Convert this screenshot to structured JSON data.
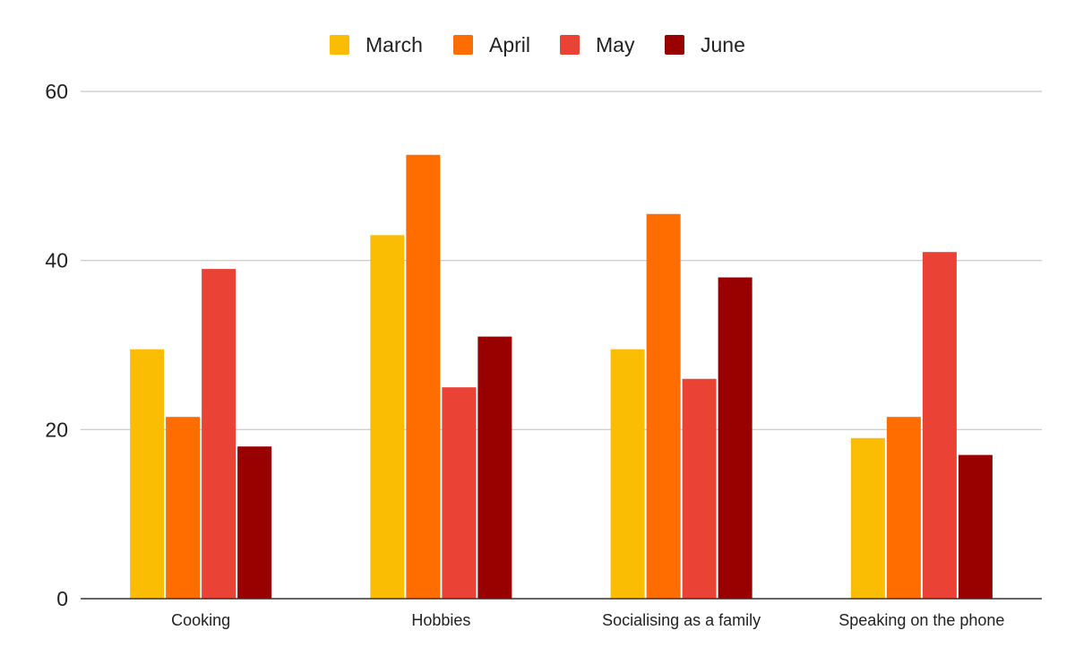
{
  "chart_data": {
    "type": "bar",
    "title": "",
    "xlabel": "",
    "ylabel": "",
    "categories": [
      "Cooking",
      "Hobbies",
      "Socialising as a family",
      "Speaking on the phone"
    ],
    "series": [
      {
        "name": "March",
        "color": "#fbbc04",
        "values": [
          29.5,
          43,
          29.5,
          19
        ]
      },
      {
        "name": "April",
        "color": "#ff6d01",
        "values": [
          21.5,
          52.5,
          45.5,
          21.5
        ]
      },
      {
        "name": "May",
        "color": "#ea4335",
        "values": [
          39,
          25,
          26,
          41
        ]
      },
      {
        "name": "June",
        "color": "#990000",
        "values": [
          18,
          31,
          38,
          17
        ]
      }
    ],
    "ylim": [
      0,
      60
    ],
    "yticks": [
      0,
      20,
      40,
      60
    ],
    "grid": true,
    "legend_position": "top-center"
  }
}
